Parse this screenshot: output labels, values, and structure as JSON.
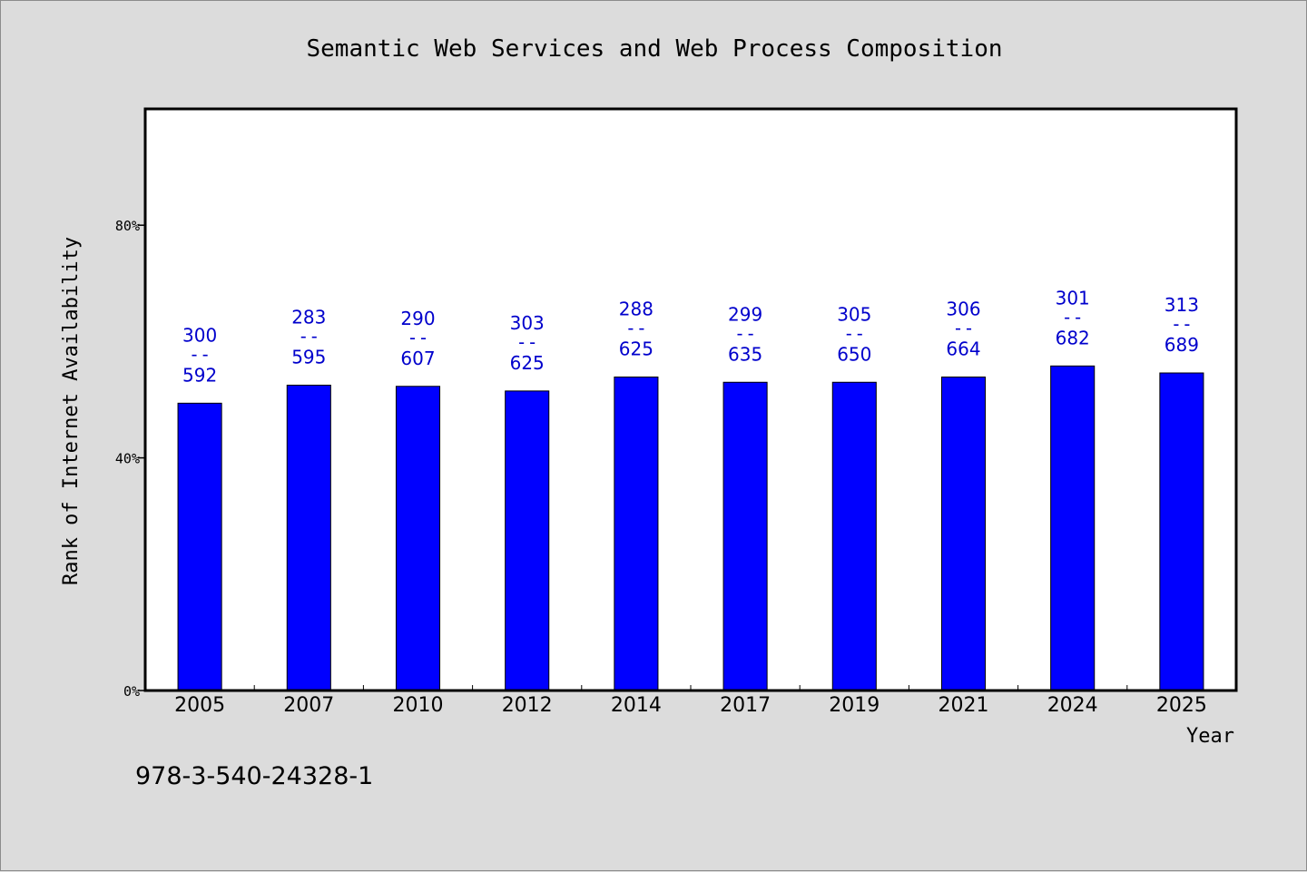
{
  "chart_data": {
    "type": "bar",
    "title": "Semantic Web Services and Web Process Composition",
    "xlabel": "Year",
    "ylabel": "Rank of Internet Availability",
    "categories": [
      "2005",
      "2007",
      "2010",
      "2012",
      "2014",
      "2017",
      "2019",
      "2021",
      "2024",
      "2025"
    ],
    "values": [
      49.4,
      52.5,
      52.3,
      51.5,
      53.9,
      53.0,
      53.0,
      53.9,
      55.8,
      54.6
    ],
    "bar_labels": [
      {
        "top": "300",
        "sep": "--",
        "bottom": "592"
      },
      {
        "top": "283",
        "sep": "--",
        "bottom": "595"
      },
      {
        "top": "290",
        "sep": "--",
        "bottom": "607"
      },
      {
        "top": "303",
        "sep": "--",
        "bottom": "625"
      },
      {
        "top": "288",
        "sep": "--",
        "bottom": "625"
      },
      {
        "top": "299",
        "sep": "--",
        "bottom": "635"
      },
      {
        "top": "305",
        "sep": "--",
        "bottom": "650"
      },
      {
        "top": "306",
        "sep": "--",
        "bottom": "664"
      },
      {
        "top": "301",
        "sep": "--",
        "bottom": "682"
      },
      {
        "top": "313",
        "sep": "--",
        "bottom": "689"
      }
    ],
    "yticks": [
      {
        "value": 0,
        "label": "0%"
      },
      {
        "value": 40,
        "label": "40%"
      },
      {
        "value": 80,
        "label": "80%"
      }
    ],
    "ylim": [
      0,
      100
    ],
    "grid": false,
    "bar_color": "#0000ff",
    "label_color": "#0000cc",
    "footnote": "978-3-540-24328-1"
  }
}
